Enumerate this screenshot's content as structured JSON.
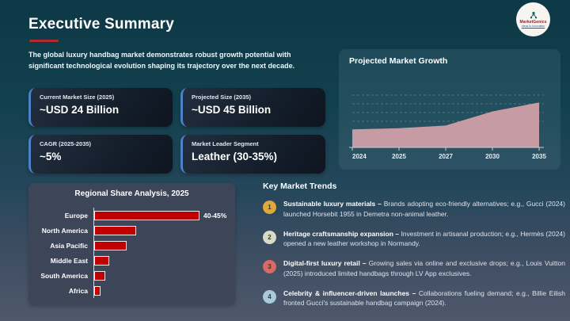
{
  "header": {
    "title": "Executive Summary",
    "intro": "The global luxury handbag market demonstrates robust growth potential with significant technological evolution shaping its trajectory over the next decade.",
    "accent_color": "#b12a32"
  },
  "logo": {
    "name": "MarketGenics",
    "tagline": "Ideas to Innovation",
    "name_color": "#8b2020",
    "tagline_color": "#1f5fa8",
    "icon": "molecule-icon",
    "icon_color": "#1e5a66"
  },
  "stat_cards": [
    {
      "label": "Current Market Size (2025)",
      "value": "~USD 24 Billion"
    },
    {
      "label": "Projected Size (2035)",
      "value": "~USD 45 Billion"
    },
    {
      "label": "CAGR (2025-2035)",
      "value": "~5%"
    },
    {
      "label": "Market Leader Segment",
      "value": "Leather (30-35%)"
    }
  ],
  "chart_data": [
    {
      "type": "area",
      "title": "Projected Market Growth",
      "categories": [
        "2024",
        "2025",
        "2027",
        "2030",
        "2035"
      ],
      "values": [
        24,
        25,
        27,
        38,
        45
      ],
      "ylim": [
        10,
        68
      ],
      "grid": true,
      "grid_style": "dashed",
      "fill_color": "#c79ba3",
      "axis_color": "#c9cfd6",
      "label_color": "#e9eef3"
    },
    {
      "type": "bar",
      "orientation": "horizontal",
      "title": "Regional Share Analysis, 2025",
      "categories": [
        "Europe",
        "North America",
        "Asia Pacific",
        "Middle East",
        "South America",
        "Africa"
      ],
      "values": [
        42.5,
        17,
        13,
        6,
        4.5,
        2.5
      ],
      "value_labels": [
        "40-45%",
        "",
        "",
        "",
        "",
        ""
      ],
      "xlim": [
        0,
        45
      ],
      "bar_color": "#c00000",
      "bar_border_color": "#ebebeb"
    }
  ],
  "trends": {
    "title": "Key Market Trends",
    "items": [
      {
        "num": "1",
        "color": "#dfa83d",
        "lead": "Sustainable luxury materials –",
        "body": "Brands adopting eco-friendly alternatives; e.g., Gucci (2024) launched Horsebit 1955 in Demetra non-animal leather."
      },
      {
        "num": "2",
        "color": "#d9dcc5",
        "lead": "Heritage craftsmanship expansion –",
        "body": "Investment in artisanal production; e.g., Hermès (2024) opened a new leather workshop in Normandy."
      },
      {
        "num": "3",
        "color": "#d56a66",
        "lead": "Digital-first luxury retail –",
        "body": "Growing sales via online and exclusive drops; e.g., Louis Vuitton (2025) introduced limited handbags through LV App exclusives."
      },
      {
        "num": "4",
        "color": "#aac9d8",
        "lead": "Celebrity & influencer-driven launches –",
        "body": "Collaborations fueling demand; e.g., Billie Eilish fronted Gucci's sustainable handbag campaign (2024)."
      }
    ]
  }
}
